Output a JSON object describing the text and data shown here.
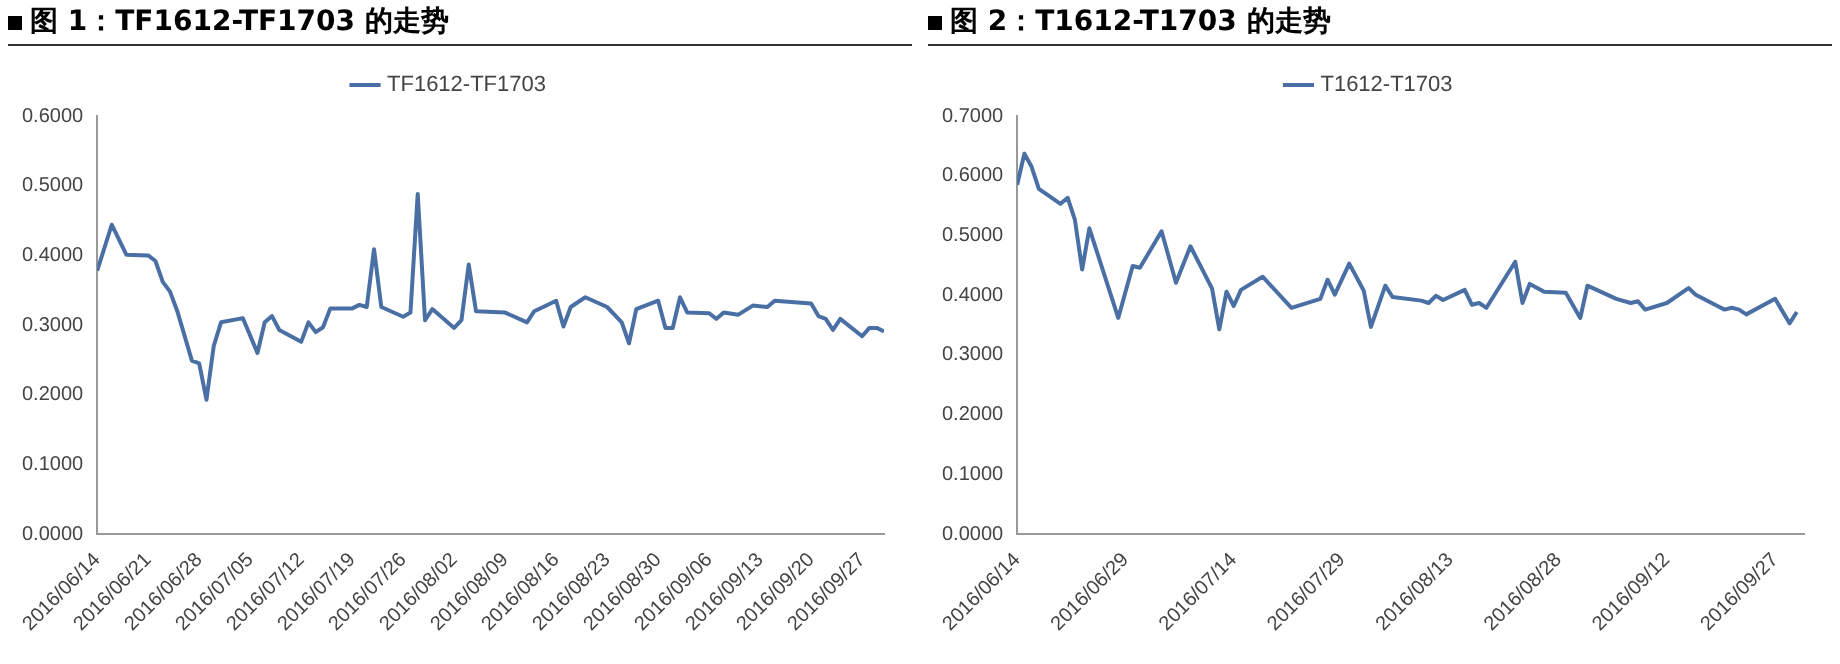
{
  "chart_data": [
    {
      "type": "line",
      "title": "图 1：TF1612-TF1703 的走势",
      "legend": "top",
      "grid": false,
      "marker": "none",
      "line_style": "solid",
      "xlim": [
        "2016-06-14",
        "2016-09-30"
      ],
      "xticks": [
        {
          "value": "2016-06-14",
          "label": "2016/06/14"
        },
        {
          "value": "2016-06-21",
          "label": "2016/06/21"
        },
        {
          "value": "2016-06-28",
          "label": "2016/06/28"
        },
        {
          "value": "2016-07-05",
          "label": "2016/07/05"
        },
        {
          "value": "2016-07-12",
          "label": "2016/07/12"
        },
        {
          "value": "2016-07-19",
          "label": "2016/07/19"
        },
        {
          "value": "2016-07-26",
          "label": "2016/07/26"
        },
        {
          "value": "2016-08-02",
          "label": "2016/08/02"
        },
        {
          "value": "2016-08-09",
          "label": "2016/08/09"
        },
        {
          "value": "2016-08-16",
          "label": "2016/08/16"
        },
        {
          "value": "2016-08-23",
          "label": "2016/08/23"
        },
        {
          "value": "2016-08-30",
          "label": "2016/08/30"
        },
        {
          "value": "2016-09-06",
          "label": "2016/09/06"
        },
        {
          "value": "2016-09-13",
          "label": "2016/09/13"
        },
        {
          "value": "2016-09-20",
          "label": "2016/09/20"
        },
        {
          "value": "2016-09-27",
          "label": "2016/09/27"
        }
      ],
      "ylim": [
        0,
        0.6
      ],
      "yticks": [
        {
          "value": 0,
          "label": "0.0000"
        },
        {
          "value": 0.1,
          "label": "0.1000"
        },
        {
          "value": 0.2,
          "label": "0.2000"
        },
        {
          "value": 0.3,
          "label": "0.3000"
        },
        {
          "value": 0.4,
          "label": "0.4000"
        },
        {
          "value": 0.5,
          "label": "0.5000"
        },
        {
          "value": 0.6,
          "label": "0.6000"
        }
      ],
      "x": [
        "2016-06-14",
        "2016-06-16",
        "2016-06-18",
        "2016-06-21",
        "2016-06-22",
        "2016-06-23",
        "2016-06-24",
        "2016-06-25",
        "2016-06-27",
        "2016-06-28",
        "2016-06-29",
        "2016-06-30",
        "2016-07-01",
        "2016-07-04",
        "2016-07-06",
        "2016-07-07",
        "2016-07-08",
        "2016-07-09",
        "2016-07-12",
        "2016-07-13",
        "2016-07-14",
        "2016-07-15",
        "2016-07-16",
        "2016-07-19",
        "2016-07-20",
        "2016-07-21",
        "2016-07-22",
        "2016-07-23",
        "2016-07-26",
        "2016-07-27",
        "2016-07-28",
        "2016-07-29",
        "2016-07-30",
        "2016-08-02",
        "2016-08-03",
        "2016-08-04",
        "2016-08-05",
        "2016-08-09",
        "2016-08-12",
        "2016-08-13",
        "2016-08-16",
        "2016-08-17",
        "2016-08-18",
        "2016-08-20",
        "2016-08-23",
        "2016-08-25",
        "2016-08-26",
        "2016-08-27",
        "2016-08-30",
        "2016-08-31",
        "2016-09-01",
        "2016-09-02",
        "2016-09-03",
        "2016-09-06",
        "2016-09-07",
        "2016-09-08",
        "2016-09-10",
        "2016-09-12",
        "2016-09-14",
        "2016-09-15",
        "2016-09-20",
        "2016-09-21",
        "2016-09-22",
        "2016-09-23",
        "2016-09-24",
        "2016-09-27",
        "2016-09-28",
        "2016-09-29",
        "2016-09-30"
      ],
      "series": [
        {
          "name": "TF1612-TF1703",
          "color": "#4a6fa5",
          "values": [
            0.378,
            0.444,
            0.401,
            0.4,
            0.392,
            0.362,
            0.348,
            0.32,
            0.249,
            0.245,
            0.193,
            0.27,
            0.304,
            0.31,
            0.26,
            0.304,
            0.313,
            0.293,
            0.276,
            0.304,
            0.29,
            0.297,
            0.324,
            0.324,
            0.329,
            0.326,
            0.409,
            0.326,
            0.312,
            0.318,
            0.488,
            0.307,
            0.323,
            0.296,
            0.307,
            0.387,
            0.32,
            0.318,
            0.304,
            0.32,
            0.335,
            0.298,
            0.326,
            0.34,
            0.326,
            0.304,
            0.274,
            0.323,
            0.335,
            0.296,
            0.296,
            0.34,
            0.318,
            0.317,
            0.309,
            0.318,
            0.315,
            0.328,
            0.326,
            0.335,
            0.331,
            0.313,
            0.309,
            0.293,
            0.309,
            0.284,
            0.296,
            0.296,
            0.291
          ]
        }
      ]
    },
    {
      "type": "line",
      "title": "图 2：T1612-T1703 的走势",
      "legend": "top",
      "grid": false,
      "marker": "none",
      "line_style": "solid",
      "xlim": [
        "2016-06-14",
        "2016-10-01"
      ],
      "xticks": [
        {
          "value": "2016-06-14",
          "label": "2016/06/14"
        },
        {
          "value": "2016-06-29",
          "label": "2016/06/29"
        },
        {
          "value": "2016-07-14",
          "label": "2016/07/14"
        },
        {
          "value": "2016-07-29",
          "label": "2016/07/29"
        },
        {
          "value": "2016-08-13",
          "label": "2016/08/13"
        },
        {
          "value": "2016-08-28",
          "label": "2016/08/28"
        },
        {
          "value": "2016-09-12",
          "label": "2016/09/12"
        },
        {
          "value": "2016-09-27",
          "label": "2016/09/27"
        }
      ],
      "ylim": [
        0,
        0.7
      ],
      "yticks": [
        {
          "value": 0,
          "label": "0.0000"
        },
        {
          "value": 0.1,
          "label": "0.1000"
        },
        {
          "value": 0.2,
          "label": "0.2000"
        },
        {
          "value": 0.3,
          "label": "0.3000"
        },
        {
          "value": 0.4,
          "label": "0.4000"
        },
        {
          "value": 0.5,
          "label": "0.5000"
        },
        {
          "value": 0.6,
          "label": "0.6000"
        },
        {
          "value": 0.7,
          "label": "0.7000"
        }
      ],
      "x": [
        "2016-06-14",
        "2016-06-15",
        "2016-06-16",
        "2016-06-17",
        "2016-06-20",
        "2016-06-21",
        "2016-06-22",
        "2016-06-23",
        "2016-06-24",
        "2016-06-28",
        "2016-06-30",
        "2016-07-01",
        "2016-07-04",
        "2016-07-06",
        "2016-07-08",
        "2016-07-11",
        "2016-07-12",
        "2016-07-13",
        "2016-07-14",
        "2016-07-15",
        "2016-07-18",
        "2016-07-22",
        "2016-07-26",
        "2016-07-27",
        "2016-07-28",
        "2016-07-30",
        "2016-08-01",
        "2016-08-02",
        "2016-08-04",
        "2016-08-05",
        "2016-08-09",
        "2016-08-10",
        "2016-08-11",
        "2016-08-12",
        "2016-08-15",
        "2016-08-16",
        "2016-08-17",
        "2016-08-18",
        "2016-08-22",
        "2016-08-23",
        "2016-08-24",
        "2016-08-26",
        "2016-08-29",
        "2016-08-31",
        "2016-09-01",
        "2016-09-05",
        "2016-09-07",
        "2016-09-08",
        "2016-09-09",
        "2016-09-12",
        "2016-09-15",
        "2016-09-16",
        "2016-09-19",
        "2016-09-20",
        "2016-09-21",
        "2016-09-22",
        "2016-09-23",
        "2016-09-27",
        "2016-09-29",
        "2016-09-30"
      ],
      "series": [
        {
          "name": "T1612-T1703",
          "color": "#4a6fa5",
          "values": [
            0.585,
            0.637,
            0.615,
            0.578,
            0.553,
            0.563,
            0.526,
            0.443,
            0.512,
            0.362,
            0.449,
            0.446,
            0.507,
            0.421,
            0.482,
            0.411,
            0.343,
            0.406,
            0.382,
            0.409,
            0.431,
            0.379,
            0.394,
            0.426,
            0.401,
            0.453,
            0.408,
            0.347,
            0.416,
            0.397,
            0.391,
            0.387,
            0.399,
            0.392,
            0.409,
            0.384,
            0.387,
            0.379,
            0.456,
            0.387,
            0.419,
            0.406,
            0.404,
            0.362,
            0.416,
            0.394,
            0.387,
            0.39,
            0.376,
            0.387,
            0.412,
            0.401,
            0.382,
            0.376,
            0.379,
            0.376,
            0.368,
            0.394,
            0.353,
            0.372
          ]
        }
      ]
    }
  ]
}
